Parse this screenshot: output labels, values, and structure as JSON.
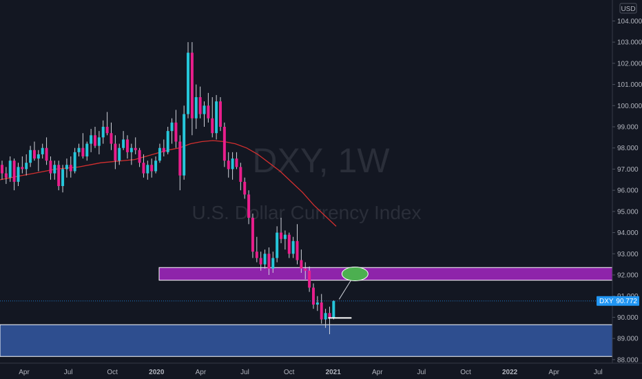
{
  "chart_data": {
    "type": "candlestick",
    "symbol": "DXY",
    "interval": "1W",
    "watermark_symbol": "DXY, 1W",
    "watermark_name": "U.S. Dollar Currency Index",
    "currency_label": "USD",
    "last_price_label": "DXY",
    "last_price": "90.772",
    "ylim": [
      87.8,
      104.6
    ],
    "y_ticks": [
      "104.000",
      "103.000",
      "102.000",
      "101.000",
      "100.000",
      "99.000",
      "98.000",
      "97.000",
      "96.000",
      "95.000",
      "94.000",
      "93.000",
      "92.000",
      "91.000",
      "90.000",
      "89.000",
      "88.000"
    ],
    "x_ticks": [
      {
        "label": "Apr",
        "bold": false
      },
      {
        "label": "Jul",
        "bold": false
      },
      {
        "label": "Oct",
        "bold": false
      },
      {
        "label": "2020",
        "bold": true
      },
      {
        "label": "Apr",
        "bold": false
      },
      {
        "label": "Jul",
        "bold": false
      },
      {
        "label": "Oct",
        "bold": false
      },
      {
        "label": "2021",
        "bold": true
      },
      {
        "label": "Apr",
        "bold": false
      },
      {
        "label": "Jul",
        "bold": false
      },
      {
        "label": "Oct",
        "bold": false
      },
      {
        "label": "2022",
        "bold": true
      },
      {
        "label": "Apr",
        "bold": false
      },
      {
        "label": "Jul",
        "bold": false
      }
    ],
    "colors": {
      "up": "#26c6da",
      "down": "#e91e8c",
      "ma": "#d32f2f",
      "resistance_zone": "#8e24aa",
      "support_zone": "#2e4e8f",
      "target": "#4caf50",
      "background": "#131722",
      "tag": "#2196f3"
    },
    "zones": [
      {
        "name": "resistance-zone",
        "y_top": 92.35,
        "y_bottom": 91.75
      },
      {
        "name": "support-zone",
        "y_top": 89.65,
        "y_bottom": 88.15
      }
    ],
    "target_ellipse_price": 92.05,
    "low_marker_price": 89.97,
    "ma": [
      96.5,
      96.6,
      96.7,
      96.8,
      96.9,
      97.0,
      97.05,
      97.1,
      97.2,
      97.3,
      97.35,
      97.4,
      97.45,
      97.6,
      97.75,
      97.9,
      98.0,
      98.2,
      98.3,
      98.35,
      98.3,
      98.2,
      98.0,
      97.7,
      97.3,
      96.9,
      96.4,
      95.9,
      95.3,
      94.8,
      94.3
    ],
    "candles": [
      [
        97.2,
        97.4,
        96.5,
        96.8
      ],
      [
        96.8,
        97.1,
        96.3,
        96.6
      ],
      [
        96.6,
        97.6,
        96.4,
        97.4
      ],
      [
        97.4,
        97.5,
        96.0,
        96.4
      ],
      [
        96.4,
        97.3,
        96.2,
        97.1
      ],
      [
        97.1,
        97.6,
        96.8,
        97.0
      ],
      [
        97.0,
        97.7,
        96.7,
        97.3
      ],
      [
        97.3,
        98.1,
        97.1,
        97.9
      ],
      [
        97.9,
        98.3,
        97.4,
        97.5
      ],
      [
        97.5,
        97.9,
        96.9,
        97.7
      ],
      [
        97.7,
        98.2,
        97.5,
        98.0
      ],
      [
        98.0,
        98.5,
        97.2,
        97.4
      ],
      [
        97.4,
        97.6,
        96.5,
        96.8
      ],
      [
        96.8,
        97.4,
        96.5,
        97.2
      ],
      [
        97.2,
        97.4,
        96.0,
        96.2
      ],
      [
        96.2,
        97.2,
        95.9,
        97.0
      ],
      [
        97.0,
        97.5,
        96.6,
        97.2
      ],
      [
        97.2,
        97.6,
        96.6,
        96.9
      ],
      [
        96.9,
        98.0,
        96.8,
        97.8
      ],
      [
        97.8,
        98.2,
        97.6,
        98.0
      ],
      [
        98.0,
        98.7,
        97.5,
        97.6
      ],
      [
        97.6,
        98.3,
        97.4,
        98.2
      ],
      [
        98.2,
        98.9,
        97.8,
        98.6
      ],
      [
        98.6,
        99.0,
        98.0,
        98.1
      ],
      [
        98.1,
        98.8,
        97.7,
        98.5
      ],
      [
        98.5,
        99.3,
        98.2,
        99.0
      ],
      [
        99.0,
        99.7,
        98.6,
        98.7
      ],
      [
        98.7,
        99.2,
        97.9,
        98.2
      ],
      [
        98.2,
        98.6,
        97.0,
        97.4
      ],
      [
        97.4,
        98.2,
        97.2,
        98.0
      ],
      [
        98.0,
        98.8,
        97.9,
        98.4
      ],
      [
        98.4,
        98.6,
        97.5,
        97.8
      ],
      [
        97.8,
        98.2,
        97.2,
        98.0
      ],
      [
        98.0,
        98.5,
        97.7,
        97.9
      ],
      [
        97.9,
        98.0,
        97.1,
        97.3
      ],
      [
        97.3,
        97.7,
        96.6,
        96.8
      ],
      [
        96.8,
        97.4,
        96.5,
        97.2
      ],
      [
        97.2,
        97.5,
        96.6,
        96.9
      ],
      [
        96.9,
        97.6,
        96.8,
        97.4
      ],
      [
        97.4,
        98.2,
        97.3,
        98.0
      ],
      [
        98.0,
        98.4,
        97.6,
        97.8
      ],
      [
        97.8,
        99.0,
        97.7,
        98.8
      ],
      [
        98.8,
        99.4,
        98.2,
        99.2
      ],
      [
        99.2,
        99.8,
        98.0,
        98.3
      ],
      [
        98.3,
        98.6,
        96.0,
        96.7
      ],
      [
        96.7,
        100.0,
        96.5,
        99.6
      ],
      [
        99.6,
        103.0,
        99.4,
        102.5
      ],
      [
        102.5,
        103.0,
        98.6,
        99.4
      ],
      [
        99.4,
        101.0,
        98.9,
        100.4
      ],
      [
        100.4,
        100.9,
        99.4,
        99.6
      ],
      [
        99.6,
        100.2,
        99.0,
        100.0
      ],
      [
        100.0,
        100.6,
        99.2,
        99.4
      ],
      [
        99.4,
        100.4,
        98.5,
        98.7
      ],
      [
        98.7,
        100.5,
        98.4,
        100.2
      ],
      [
        100.2,
        100.4,
        98.8,
        99.0
      ],
      [
        99.0,
        99.2,
        97.1,
        97.4
      ],
      [
        97.4,
        97.8,
        96.6,
        97.0
      ],
      [
        97.0,
        97.8,
        96.5,
        97.5
      ],
      [
        97.5,
        97.8,
        97.0,
        97.1
      ],
      [
        97.1,
        97.3,
        96.0,
        96.4
      ],
      [
        96.4,
        96.6,
        95.6,
        95.8
      ],
      [
        95.8,
        96.0,
        94.4,
        94.7
      ],
      [
        94.7,
        94.9,
        92.8,
        93.1
      ],
      [
        93.1,
        93.8,
        92.6,
        92.8
      ],
      [
        92.8,
        93.1,
        92.2,
        92.5
      ],
      [
        92.5,
        93.2,
        92.3,
        93.0
      ],
      [
        93.0,
        93.3,
        92.0,
        92.3
      ],
      [
        92.3,
        93.1,
        92.1,
        92.8
      ],
      [
        92.8,
        94.3,
        92.6,
        94.0
      ],
      [
        94.0,
        94.7,
        93.5,
        93.7
      ],
      [
        93.7,
        94.1,
        93.2,
        93.9
      ],
      [
        93.9,
        94.0,
        92.8,
        93.0
      ],
      [
        93.0,
        93.8,
        92.8,
        93.6
      ],
      [
        93.6,
        94.4,
        92.5,
        92.7
      ],
      [
        92.7,
        93.2,
        92.1,
        92.3
      ],
      [
        92.3,
        92.6,
        91.8,
        92.2
      ],
      [
        92.2,
        92.4,
        91.2,
        91.4
      ],
      [
        91.4,
        91.6,
        90.4,
        90.6
      ],
      [
        90.6,
        91.0,
        90.3,
        90.7
      ],
      [
        90.7,
        91.1,
        89.7,
        89.9
      ],
      [
        89.9,
        90.4,
        89.5,
        90.2
      ],
      [
        90.2,
        90.5,
        89.2,
        90.0
      ],
      [
        90.0,
        90.8,
        89.9,
        90.77
      ]
    ]
  }
}
